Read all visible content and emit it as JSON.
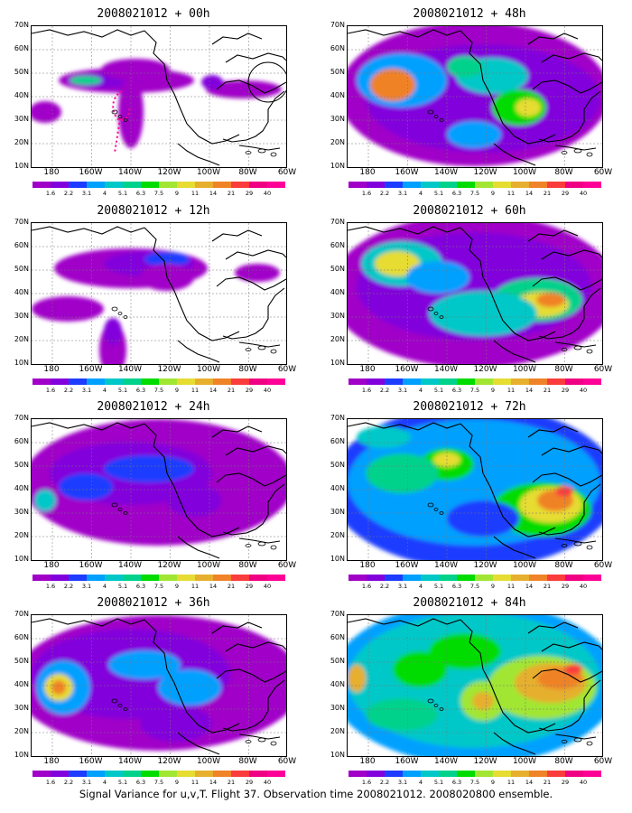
{
  "caption": "Signal Variance for u,v,T. Flight 37. Observation time 2008021012. 2008020800 ensemble.",
  "panels": [
    {
      "title": "2008021012 + 00h"
    },
    {
      "title": "2008021012 + 48h"
    },
    {
      "title": "2008021012 + 12h"
    },
    {
      "title": "2008021012 + 60h"
    },
    {
      "title": "2008021012 + 24h"
    },
    {
      "title": "2008021012 + 72h"
    },
    {
      "title": "2008021012 + 36h"
    },
    {
      "title": "2008021012 + 84h"
    }
  ],
  "axes": {
    "lat_labels": [
      "70N",
      "60N",
      "50N",
      "40N",
      "30N",
      "20N",
      "10N"
    ],
    "lon_labels": [
      "180",
      "160W",
      "140W",
      "120W",
      "100W",
      "80W",
      "60W"
    ]
  },
  "colorbar": {
    "labels": [
      "1.6",
      "2.2",
      "3.1",
      "4",
      "5.1",
      "6.3",
      "7.5",
      "9",
      "11",
      "14",
      "21",
      "29",
      "40"
    ],
    "colors": [
      "#a000c8",
      "#8200dc",
      "#1e3cff",
      "#00a0ff",
      "#00c8c8",
      "#00d28c",
      "#00dc00",
      "#a0e632",
      "#e6dc32",
      "#e6af2d",
      "#f08228",
      "#fa3c3c",
      "#f00082",
      "#ff0096"
    ]
  }
}
